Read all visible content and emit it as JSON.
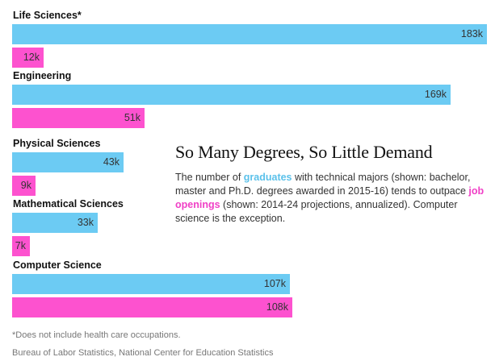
{
  "chart_data": {
    "type": "bar",
    "orientation": "horizontal",
    "title": "So Many Degrees, So Little Demand",
    "categories": [
      "Life Sciences*",
      "Engineering",
      "Physical Sciences",
      "Mathematical Sciences",
      "Computer Science"
    ],
    "series": [
      {
        "name": "graduates",
        "color": "#6ccbf3",
        "values": [
          183,
          169,
          43,
          33,
          107
        ],
        "value_labels": [
          "183k",
          "169k",
          "43k",
          "33k",
          "107k"
        ]
      },
      {
        "name": "job openings",
        "color": "#fd52cf",
        "values": [
          12,
          51,
          9,
          7,
          108
        ],
        "value_labels": [
          "12k",
          "51k",
          "9k",
          "7k",
          "108k"
        ]
      }
    ],
    "unit": "k",
    "xlim": [
      0,
      183
    ],
    "grid": false,
    "legend": "inline in description text"
  },
  "description": {
    "part1": "The number of ",
    "highlight1": "graduates",
    "part2": " with technical majors (shown: bachelor, master and Ph.D. degrees awarded in 2015-16) tends to outpace ",
    "highlight2": "job openings",
    "part3": " (shown: 2014-24 projections, annualized). Computer science is the exception."
  },
  "footnote": "*Does not include health care occupations.",
  "source": "Bureau of Labor Statistics, National Center for Education Statistics"
}
